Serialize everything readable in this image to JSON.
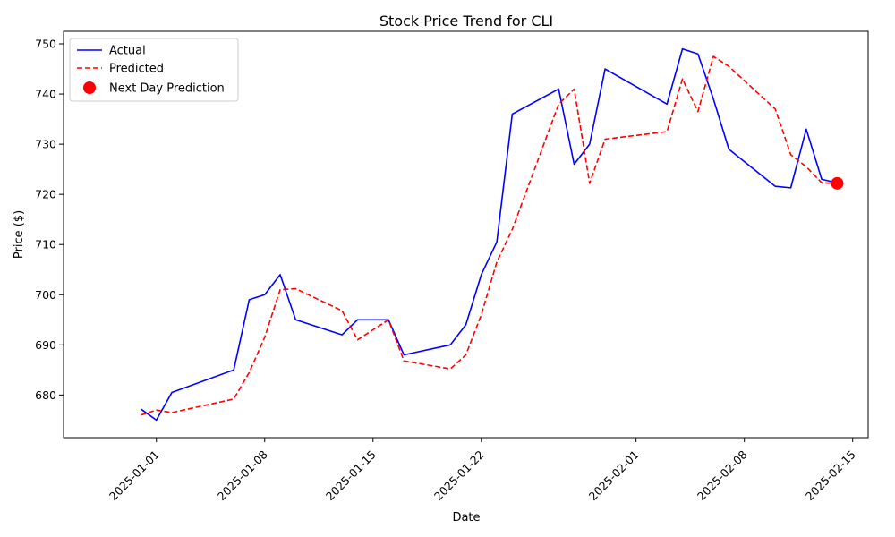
{
  "chart_data": {
    "type": "line",
    "title": "Stock Price Trend for CLI",
    "xlabel": "Date",
    "ylabel": "Price ($)",
    "x_range": [
      "2024-12-26",
      "2025-02-16"
    ],
    "ylim": [
      671.5,
      752.5
    ],
    "grid": false,
    "legend_position": "top-left",
    "x_ticks": [
      "2025-01-01",
      "2025-01-08",
      "2025-01-15",
      "2025-01-22",
      "2025-02-01",
      "2025-02-08",
      "2025-02-15"
    ],
    "y_ticks": [
      680,
      690,
      700,
      710,
      720,
      730,
      740,
      750
    ],
    "series": [
      {
        "name": "Actual",
        "color": "#0000ff",
        "style": "solid",
        "x": [
          "2024-12-31",
          "2025-01-01",
          "2025-01-02",
          "2025-01-06",
          "2025-01-07",
          "2025-01-08",
          "2025-01-09",
          "2025-01-10",
          "2025-01-13",
          "2025-01-14",
          "2025-01-15",
          "2025-01-16",
          "2025-01-17",
          "2025-01-20",
          "2025-01-21",
          "2025-01-22",
          "2025-01-23",
          "2025-01-24",
          "2025-01-27",
          "2025-01-28",
          "2025-01-29",
          "2025-01-30",
          "2025-02-03",
          "2025-02-04",
          "2025-02-05",
          "2025-02-06",
          "2025-02-07",
          "2025-02-10",
          "2025-02-11",
          "2025-02-12",
          "2025-02-13",
          "2025-02-14"
        ],
        "y": [
          677.2,
          675.0,
          680.5,
          685.0,
          699.0,
          700.0,
          704.0,
          695.0,
          692.0,
          695.0,
          695.0,
          695.0,
          688.0,
          690.0,
          694.0,
          704.0,
          710.5,
          736.0,
          741.0,
          726.0,
          730.0,
          745.0,
          738.0,
          749.0,
          748.0,
          739.0,
          729.0,
          721.6,
          721.3,
          733.0,
          723.0,
          722.3
        ]
      },
      {
        "name": "Predicted",
        "color": "#ff0000",
        "style": "dashed",
        "x": [
          "2024-12-31",
          "2025-01-01",
          "2025-01-02",
          "2025-01-06",
          "2025-01-07",
          "2025-01-08",
          "2025-01-09",
          "2025-01-10",
          "2025-01-13",
          "2025-01-14",
          "2025-01-15",
          "2025-01-16",
          "2025-01-17",
          "2025-01-20",
          "2025-01-21",
          "2025-01-22",
          "2025-01-23",
          "2025-01-24",
          "2025-01-27",
          "2025-01-28",
          "2025-01-29",
          "2025-01-30",
          "2025-02-03",
          "2025-02-04",
          "2025-02-05",
          "2025-02-06",
          "2025-02-07",
          "2025-02-10",
          "2025-02-11",
          "2025-02-12",
          "2025-02-13",
          "2025-02-14"
        ],
        "y": [
          676.0,
          677.0,
          676.5,
          679.2,
          684.5,
          691.5,
          701.0,
          701.2,
          696.8,
          691.0,
          693.0,
          695.0,
          686.8,
          685.2,
          688.0,
          696.0,
          706.5,
          713.0,
          738.0,
          741.0,
          722.2,
          731.0,
          732.5,
          743.0,
          736.5,
          747.5,
          745.5,
          737.0,
          727.9,
          725.5,
          722.3,
          722.2
        ]
      }
    ],
    "next_day_prediction": {
      "name": "Next Day Prediction",
      "color": "#ff0000",
      "x": "2025-02-14",
      "y": 722.2
    }
  }
}
